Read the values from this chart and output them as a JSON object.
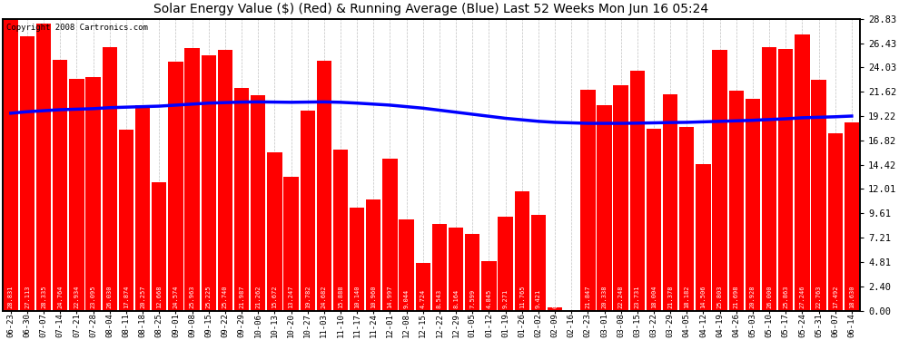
{
  "title": "Solar Energy Value ($) (Red) & Running Average (Blue) Last 52 Weeks Mon Jun 16 05:24",
  "copyright": "Copyright 2008 Cartronics.com",
  "bar_color": "#ff0000",
  "line_color": "#0000ff",
  "bg_color": "#ffffff",
  "grid_color": "#c0c0c0",
  "ylim": [
    0.0,
    28.83
  ],
  "yticks": [
    0.0,
    2.4,
    4.81,
    7.21,
    9.61,
    12.01,
    14.42,
    16.82,
    19.22,
    21.62,
    24.03,
    26.43,
    28.83
  ],
  "categories": [
    "06-23",
    "06-30",
    "07-07",
    "07-14",
    "07-21",
    "07-28",
    "08-04",
    "08-11",
    "08-18",
    "08-25",
    "09-01",
    "09-08",
    "09-15",
    "09-22",
    "09-29",
    "10-06",
    "10-13",
    "10-20",
    "10-27",
    "11-03",
    "11-10",
    "11-17",
    "11-24",
    "12-01",
    "12-08",
    "12-15",
    "12-22",
    "12-29",
    "01-05",
    "01-12",
    "01-19",
    "01-26",
    "02-02",
    "02-09",
    "02-16",
    "02-23",
    "03-01",
    "03-08",
    "03-15",
    "03-22",
    "03-29",
    "04-05",
    "04-12",
    "04-19",
    "04-26",
    "05-03",
    "05-10",
    "05-17",
    "05-24",
    "05-31",
    "06-07",
    "06-14"
  ],
  "values": [
    28.831,
    27.113,
    28.335,
    24.764,
    22.934,
    23.095,
    26.03,
    17.874,
    20.257,
    12.668,
    24.574,
    25.963,
    25.225,
    25.74,
    21.987,
    21.262,
    15.672,
    13.247,
    19.782,
    24.682,
    15.888,
    10.14,
    10.96,
    14.997,
    9.044,
    4.724,
    8.543,
    8.164,
    7.599,
    4.845,
    9.271,
    11.765,
    9.421,
    0.317,
    0.0,
    21.847,
    20.338,
    22.248,
    23.731,
    18.004,
    21.378,
    18.182,
    14.506,
    25.803,
    21.698,
    20.928,
    26.0,
    25.863,
    27.246,
    22.763,
    17.492,
    18.63
  ],
  "running_avg": [
    19.5,
    19.65,
    19.75,
    19.85,
    19.9,
    19.95,
    20.05,
    20.1,
    20.15,
    20.2,
    20.3,
    20.4,
    20.5,
    20.55,
    20.6,
    20.62,
    20.6,
    20.58,
    20.6,
    20.62,
    20.58,
    20.5,
    20.4,
    20.3,
    20.15,
    20.0,
    19.8,
    19.6,
    19.4,
    19.2,
    19.0,
    18.85,
    18.7,
    18.6,
    18.55,
    18.5,
    18.5,
    18.5,
    18.52,
    18.55,
    18.58,
    18.6,
    18.65,
    18.7,
    18.75,
    18.8,
    18.88,
    18.95,
    19.05,
    19.1,
    19.15,
    19.22
  ]
}
